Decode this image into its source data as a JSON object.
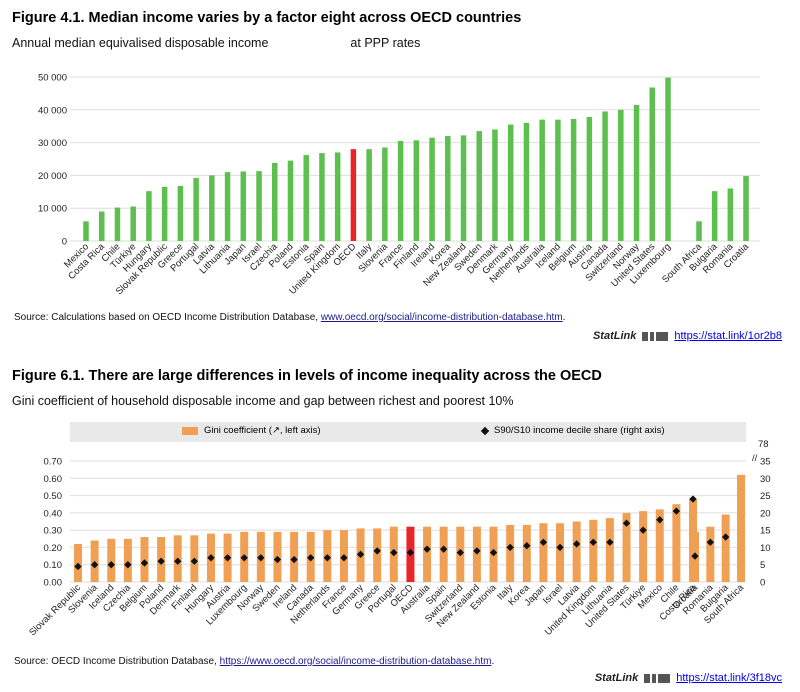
{
  "panel1": {
    "title": "Figure 4.1. Median income varies by a factor eight across OECD countries",
    "subtitle": "Annual median equivalised disposable income",
    "subtitle_suffix": "at PPP rates",
    "source_text": "Source: Calculations based on OECD Income Distribution Database, ",
    "source_link": "www.oecd.org/social/income-distribution-database.htm",
    "source_end": ".",
    "statlink_logo": "StatLink",
    "statlink_url": "https://stat.link/1or2b8"
  },
  "panel2": {
    "title": "Figure 6.1. There are large differences in levels of income inequality across the OECD",
    "subtitle": "Gini coefficient of household disposable income and gap between richest and poorest 10%",
    "legend_gini": "Gini coefficient (↗, left axis)",
    "legend_ratio": "S90/S10 income decile share (right axis)",
    "right_axis_break_label": "78",
    "source_text": "Source: OECD Income Distribution Database, ",
    "source_link": "https://www.oecd.org/social/income-distribution-database.htm",
    "source_end": ".",
    "statlink_logo": "StatLink",
    "statlink_url": "https://stat.link/3f18vc"
  },
  "colors": {
    "green": "#5cbf4e",
    "red": "#e8262a",
    "orange": "#f0a055",
    "highlight_orange": "#e8262a",
    "diamond": "#111111"
  },
  "chart_data": [
    {
      "type": "bar",
      "ylim": [
        0,
        50000
      ],
      "yticks": [
        "0",
        "10 000",
        "20 000",
        "30 000",
        "40 000",
        "50 000"
      ],
      "ytick_values": [
        0,
        10000,
        20000,
        30000,
        40000,
        50000
      ],
      "grid": true,
      "highlight": "OECD",
      "groups": [
        {
          "categories": [
            "Mexico",
            "Costa Rica",
            "Chile",
            "Türkiye",
            "Hungary",
            "Slovak Republic",
            "Greece",
            "Portugal",
            "Latvia",
            "Lithuania",
            "Japan",
            "Israel",
            "Czechia",
            "Poland",
            "Estonia",
            "Spain",
            "United Kingdom",
            "OECD",
            "Italy",
            "Slovenia",
            "France",
            "Finland",
            "Ireland",
            "Korea",
            "New Zealand",
            "Sweden",
            "Denmark",
            "Germany",
            "Netherlands",
            "Australia",
            "Iceland",
            "Belgium",
            "Austria",
            "Canada",
            "Switzerland",
            "Norway",
            "United States",
            "Luxembourg"
          ],
          "values": [
            6000,
            9000,
            10200,
            10500,
            15200,
            16500,
            16800,
            19200,
            20000,
            21000,
            21200,
            21300,
            23800,
            24500,
            26200,
            26800,
            27000,
            28000,
            28000,
            28500,
            30500,
            30700,
            31500,
            32000,
            32200,
            33500,
            34000,
            35500,
            36000,
            37000,
            37000,
            37200,
            37800,
            39500,
            40000,
            41500,
            46800,
            49800
          ]
        },
        {
          "categories": [
            "South Africa",
            "Bulgaria",
            "Romania",
            "Croatia"
          ],
          "values": [
            6000,
            15200,
            16000,
            19800
          ]
        }
      ]
    },
    {
      "type": "bar+scatter",
      "ylim_left": [
        0,
        0.7
      ],
      "yticks_left": [
        "0.00",
        "0.10",
        "0.20",
        "0.30",
        "0.40",
        "0.50",
        "0.60",
        "0.70"
      ],
      "ytick_values_left": [
        0,
        0.1,
        0.2,
        0.3,
        0.4,
        0.5,
        0.6,
        0.7
      ],
      "ylim_right": [
        0,
        35
      ],
      "yticks_right": [
        "0",
        "5",
        "10",
        "15",
        "20",
        "25",
        "30",
        "35"
      ],
      "ytick_values_right": [
        0,
        5,
        10,
        15,
        20,
        25,
        30,
        35
      ],
      "grid": true,
      "highlight": "OECD",
      "series": [
        {
          "name": "Gini coefficient (↗, left axis)",
          "kind": "bar",
          "axis": "left"
        },
        {
          "name": "S90/S10 income decile share (right axis)",
          "kind": "diamond",
          "axis": "right"
        }
      ],
      "groups": [
        {
          "categories": [
            "Slovak Republic",
            "Slovenia",
            "Iceland",
            "Czechia",
            "Belgium",
            "Poland",
            "Denmark",
            "Finland",
            "Hungary",
            "Austria",
            "Luxembourg",
            "Norway",
            "Sweden",
            "Ireland",
            "Canada",
            "Netherlands",
            "France",
            "Germany",
            "Greece",
            "Portugal",
            "OECD",
            "Australia",
            "Spain",
            "Switzerland",
            "New Zealand",
            "Estonia",
            "Italy",
            "Korea",
            "Japan",
            "Israel",
            "Latvia",
            "United Kingdom",
            "Lithuania",
            "United States",
            "Türkiye",
            "Mexico",
            "Chile",
            "Costa Rica"
          ],
          "gini": [
            0.22,
            0.24,
            0.25,
            0.25,
            0.26,
            0.26,
            0.27,
            0.27,
            0.28,
            0.28,
            0.29,
            0.29,
            0.29,
            0.29,
            0.29,
            0.3,
            0.3,
            0.31,
            0.31,
            0.32,
            0.32,
            0.32,
            0.32,
            0.32,
            0.32,
            0.32,
            0.33,
            0.33,
            0.34,
            0.34,
            0.35,
            0.36,
            0.37,
            0.4,
            0.41,
            0.42,
            0.45,
            0.48
          ],
          "ratio": [
            4.5,
            5.0,
            5.0,
            5.0,
            5.5,
            6.0,
            6.0,
            6.0,
            7.0,
            7.0,
            7.0,
            7.0,
            6.5,
            6.5,
            7.0,
            7.0,
            7.0,
            8.0,
            9.0,
            8.5,
            8.5,
            9.5,
            9.5,
            8.5,
            9.0,
            8.5,
            10.0,
            10.5,
            11.5,
            10.0,
            11.0,
            11.5,
            11.5,
            17.0,
            15.0,
            18.0,
            20.5,
            24.0
          ]
        },
        {
          "categories": [
            "Croatia",
            "Romania",
            "Bulgaria",
            "South Africa"
          ],
          "gini": [
            0.29,
            0.32,
            0.39,
            0.62
          ],
          "ratio": [
            7.5,
            11.5,
            13.0,
            null
          ]
        }
      ]
    }
  ]
}
